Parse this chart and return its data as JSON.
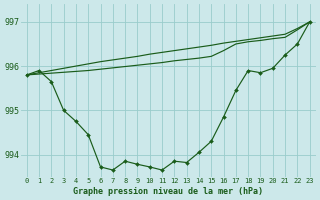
{
  "title": "Graphe pression niveau de la mer (hPa)",
  "bg_color": "#cce8ea",
  "grid_color": "#99cccc",
  "line_color": "#1a5c1a",
  "marker_color": "#1a5c1a",
  "ylim": [
    993.5,
    997.4
  ],
  "yticks": [
    994,
    995,
    996,
    997
  ],
  "xlim": [
    -0.5,
    23.5
  ],
  "series_main": [
    995.8,
    995.9,
    995.65,
    995.0,
    994.75,
    994.45,
    993.72,
    993.65,
    993.85,
    993.78,
    993.72,
    993.65,
    993.85,
    993.82,
    994.05,
    994.3,
    994.85,
    995.45,
    995.9,
    995.85,
    995.95,
    996.25,
    996.5,
    997.0
  ],
  "series_linear1": [
    995.8,
    995.85,
    995.9,
    995.95,
    996.0,
    996.05,
    996.1,
    996.14,
    996.18,
    996.22,
    996.27,
    996.31,
    996.35,
    996.39,
    996.43,
    996.47,
    996.52,
    996.56,
    996.6,
    996.64,
    996.68,
    996.72,
    996.85,
    997.0
  ],
  "series_linear2": [
    995.8,
    995.82,
    995.84,
    995.86,
    995.88,
    995.9,
    995.93,
    995.96,
    995.99,
    996.02,
    996.05,
    996.08,
    996.12,
    996.15,
    996.18,
    996.22,
    996.35,
    996.5,
    996.55,
    996.58,
    996.62,
    996.65,
    996.82,
    997.0
  ]
}
